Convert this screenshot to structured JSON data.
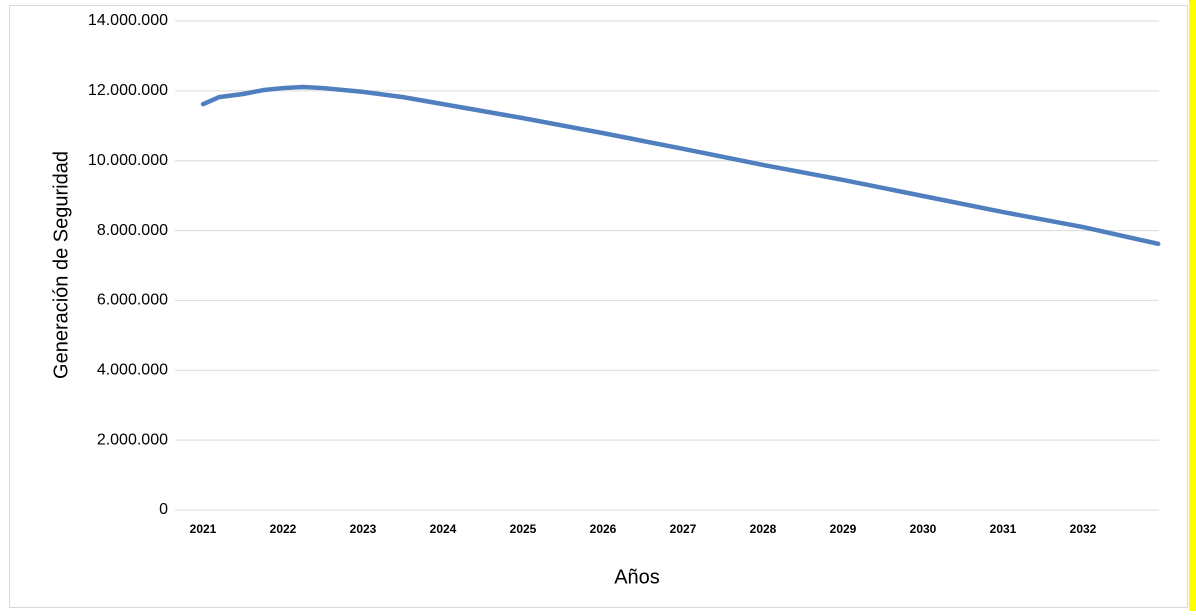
{
  "chart_data": {
    "type": "line",
    "x_label": "Años",
    "y_label": "Generación de Seguridad",
    "x": [
      2021,
      2021.2,
      2021.5,
      2021.75,
      2022,
      2022.25,
      2022.5,
      2023,
      2023.5,
      2024,
      2025,
      2026,
      2027,
      2028,
      2029,
      2030,
      2031,
      2032,
      2032.94
    ],
    "series": [
      {
        "name": "Generación de Seguridad",
        "color": "#4f7fbf",
        "values": [
          11620000,
          11820000,
          11910000,
          12020000,
          12080000,
          12110000,
          12080000,
          11970000,
          11820000,
          11620000,
          11220000,
          10790000,
          10340000,
          9880000,
          9450000,
          8990000,
          8530000,
          8100000,
          7620000
        ]
      }
    ],
    "xlim": [
      2021,
      2032.95
    ],
    "xticks": [
      2021,
      2022,
      2023,
      2024,
      2025,
      2026,
      2027,
      2028,
      2029,
      2030,
      2031,
      2032
    ],
    "ylim": [
      0,
      14000000
    ],
    "yticks": [
      0,
      {
        "value": 2000000,
        "label": "2.000.000"
      },
      {
        "value": 4000000,
        "label": "4.000.000"
      },
      {
        "value": 6000000,
        "label": "6.000.000"
      },
      {
        "value": 8000000,
        "label": "8.000.000"
      },
      {
        "value": 10000000,
        "label": "10.000.000"
      },
      {
        "value": 12000000,
        "label": "12.000.000"
      },
      {
        "value": 14000000,
        "label": "14.000.000"
      }
    ],
    "grid": true
  }
}
